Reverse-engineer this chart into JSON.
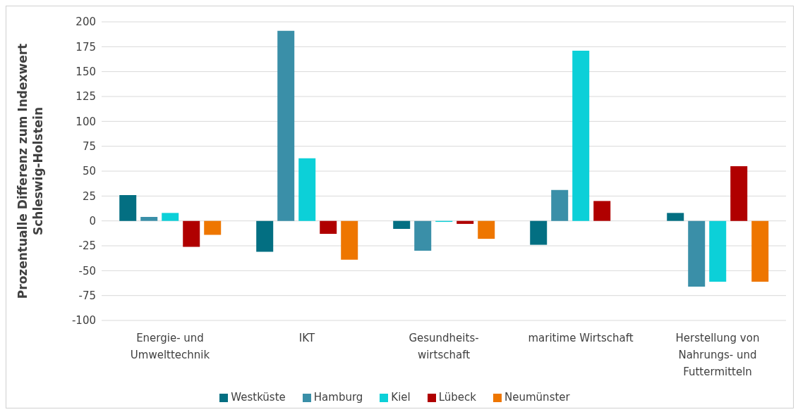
{
  "chart_data": {
    "type": "bar",
    "ylabel": "Prozentualle Differenz zum Indexwert\nSchleswig-Holstein",
    "categories": [
      "Energie- und\nUmwelttechnik",
      "IKT",
      "Gesundheits-\nwirtschaft",
      "maritime Wirtschaft",
      "Herstellung von\nNahrungs- und\nFuttermitteln"
    ],
    "series": [
      {
        "name": "Westküste",
        "color": "#036f82",
        "values": [
          26,
          -31,
          -8,
          -24,
          8
        ]
      },
      {
        "name": "Hamburg",
        "color": "#3a8fa8",
        "values": [
          4,
          191,
          -30,
          31,
          -66
        ]
      },
      {
        "name": "Kiel",
        "color": "#0cd0d8",
        "values": [
          8,
          63,
          -1,
          171,
          -61
        ]
      },
      {
        "name": "Lübeck",
        "color": "#b00000",
        "values": [
          -26,
          -13,
          -3,
          20,
          55
        ]
      },
      {
        "name": "Neumünster",
        "color": "#ee7600",
        "values": [
          -14,
          -39,
          -18,
          null,
          -61
        ]
      }
    ],
    "ylim": [
      -100,
      200
    ],
    "yticks": [
      -100,
      -75,
      -50,
      -25,
      0,
      25,
      50,
      75,
      100,
      125,
      150,
      175,
      200
    ],
    "grid": "y",
    "legend": "bottom"
  }
}
